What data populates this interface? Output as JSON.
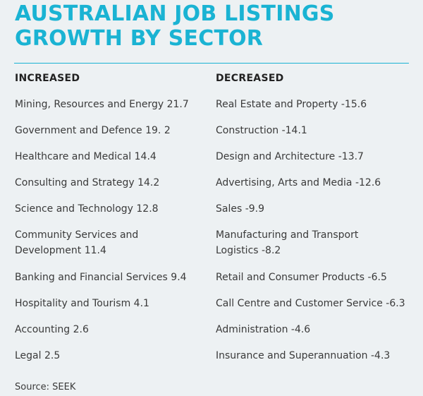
{
  "title_line1": "AUSTRALIAN JOB LISTINGS",
  "title_line2": "GROWTH BY SECTOR",
  "increased": {
    "header": "INCREASED",
    "items": [
      "Mining, Resources and Energy 21.7",
      "Government and Defence 19. 2",
      "Healthcare and Medical 14.4",
      "Consulting and Strategy 14.2",
      "Science and Technology 12.8",
      "Community Services and Development 11.4",
      "Banking and Financial Services 9.4",
      "Hospitality and Tourism 4.1",
      "Accounting 2.6",
      "Legal 2.5"
    ]
  },
  "decreased": {
    "header": "DECREASED",
    "items": [
      "Real Estate and Property -15.6",
      "Construction -14.1",
      "Design and Architecture -13.7",
      "Advertising, Arts and Media -12.6",
      "Sales -9.9",
      "Manufacturing and Transport Logistics -8.2",
      "Retail and Consumer Products -6.5",
      "Call Centre and Customer Service -6.3",
      "Administration -4.6",
      "Insurance and Superannuation -4.3"
    ]
  },
  "source": "Source: SEEK",
  "colors": {
    "accent": "#1ab3d3",
    "background": "#edf1f3",
    "text": "#3a3a3a"
  }
}
